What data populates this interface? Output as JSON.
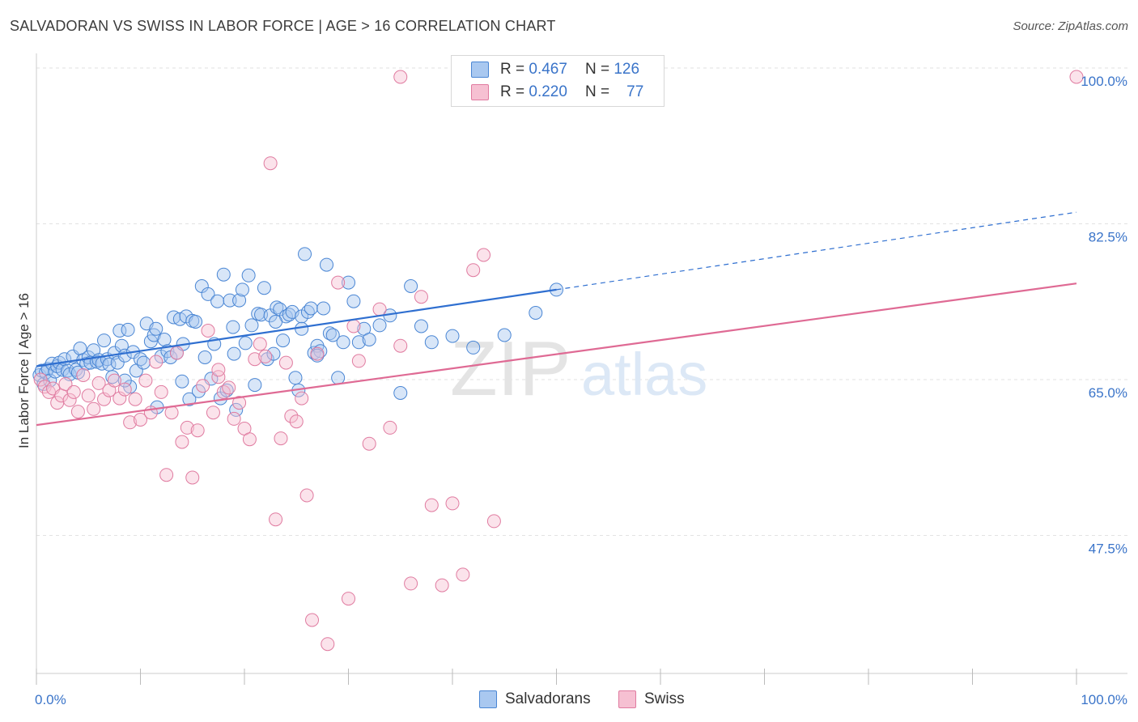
{
  "header": {
    "title": "SALVADORAN VS SWISS IN LABOR FORCE | AGE > 16 CORRELATION CHART",
    "source": "Source: ZipAtlas.com"
  },
  "legend": {
    "series1": {
      "r_label": "R =",
      "r_value": "0.467",
      "n_label": "N =",
      "n_value": "126"
    },
    "series2": {
      "r_label": "R =",
      "r_value": "0.220",
      "n_label": "N =",
      "n_value": "77"
    }
  },
  "watermark": {
    "zip": "ZIP",
    "atlas": "atlas"
  },
  "chart_data": {
    "type": "scatter",
    "title": "SALVADORAN VS SWISS IN LABOR FORCE | AGE > 16 CORRELATION CHART",
    "xlabel": "",
    "ylabel": "In Labor Force | Age > 16",
    "xlim": [
      0,
      100
    ],
    "ylim": [
      32,
      102
    ],
    "x_tick_labels": [
      "0.0%",
      "100.0%"
    ],
    "y_ticks": [
      47.5,
      65.0,
      82.5,
      100.0
    ],
    "y_tick_labels": [
      "47.5%",
      "65.0%",
      "82.5%",
      "100.0%"
    ],
    "grid": true,
    "legend_position": "top-center",
    "colors": {
      "Salvadorans": {
        "fill": "#a9c8f0",
        "stroke": "#4a86d4",
        "line": "#2f6fd0"
      },
      "Swiss": {
        "fill": "#f6c0d2",
        "stroke": "#e07ba0",
        "line": "#df6a94"
      }
    },
    "series": [
      {
        "name": "Salvadorans",
        "r": 0.467,
        "n": 126,
        "trend": {
          "x": [
            0,
            50
          ],
          "y": [
            66.5,
            75.1
          ],
          "dashed_extension": {
            "x": [
              50,
              100
            ],
            "y": [
              75.1,
              83.8
            ]
          }
        },
        "points": [
          [
            0.3,
            65.5
          ],
          [
            0.5,
            66.0
          ],
          [
            0.7,
            64.5
          ],
          [
            0.9,
            65.8
          ],
          [
            1.1,
            66.2
          ],
          [
            1.3,
            64.9
          ],
          [
            1.5,
            66.8
          ],
          [
            1.8,
            65.9
          ],
          [
            2.0,
            66.5
          ],
          [
            2.2,
            66.9
          ],
          [
            2.5,
            66.1
          ],
          [
            2.7,
            67.3
          ],
          [
            3.0,
            66.0
          ],
          [
            3.2,
            65.6
          ],
          [
            3.5,
            67.6
          ],
          [
            3.8,
            66.1
          ],
          [
            4.0,
            65.8
          ],
          [
            4.2,
            68.5
          ],
          [
            4.5,
            67.2
          ],
          [
            4.8,
            66.8
          ],
          [
            5.0,
            67.5
          ],
          [
            5.2,
            66.9
          ],
          [
            5.5,
            68.3
          ],
          [
            5.8,
            67.0
          ],
          [
            6.0,
            67.2
          ],
          [
            6.3,
            66.8
          ],
          [
            6.5,
            69.4
          ],
          [
            6.8,
            67.3
          ],
          [
            7.0,
            66.7
          ],
          [
            7.3,
            65.3
          ],
          [
            7.5,
            68.0
          ],
          [
            7.8,
            66.9
          ],
          [
            8.0,
            70.5
          ],
          [
            8.2,
            68.8
          ],
          [
            8.5,
            67.7
          ],
          [
            8.8,
            70.6
          ],
          [
            9.0,
            64.2
          ],
          [
            9.3,
            68.1
          ],
          [
            9.6,
            66.0
          ],
          [
            10.0,
            67.3
          ],
          [
            10.3,
            66.9
          ],
          [
            10.6,
            71.3
          ],
          [
            11.0,
            69.3
          ],
          [
            11.3,
            70.0
          ],
          [
            11.6,
            61.9
          ],
          [
            12.0,
            67.6
          ],
          [
            12.3,
            69.5
          ],
          [
            12.6,
            68.2
          ],
          [
            12.9,
            67.5
          ],
          [
            13.2,
            72.0
          ],
          [
            13.5,
            68.0
          ],
          [
            13.8,
            71.8
          ],
          [
            14.1,
            69.0
          ],
          [
            14.4,
            72.1
          ],
          [
            14.7,
            62.8
          ],
          [
            15.0,
            71.6
          ],
          [
            15.3,
            71.5
          ],
          [
            15.6,
            63.7
          ],
          [
            15.9,
            75.5
          ],
          [
            16.2,
            67.5
          ],
          [
            16.5,
            74.6
          ],
          [
            16.8,
            65.1
          ],
          [
            17.1,
            69.0
          ],
          [
            17.4,
            73.8
          ],
          [
            17.7,
            62.9
          ],
          [
            18.0,
            76.8
          ],
          [
            18.3,
            63.8
          ],
          [
            18.6,
            73.9
          ],
          [
            18.9,
            70.9
          ],
          [
            19.2,
            61.6
          ],
          [
            19.5,
            73.9
          ],
          [
            19.8,
            75.1
          ],
          [
            20.1,
            69.1
          ],
          [
            20.4,
            76.7
          ],
          [
            20.7,
            71.1
          ],
          [
            21.0,
            64.4
          ],
          [
            21.3,
            72.4
          ],
          [
            21.6,
            72.3
          ],
          [
            21.9,
            75.3
          ],
          [
            22.2,
            67.3
          ],
          [
            22.5,
            72.2
          ],
          [
            22.8,
            67.9
          ],
          [
            23.1,
            73.1
          ],
          [
            23.4,
            72.9
          ],
          [
            23.7,
            69.4
          ],
          [
            24.0,
            72.1
          ],
          [
            24.3,
            72.3
          ],
          [
            24.6,
            72.6
          ],
          [
            24.9,
            65.2
          ],
          [
            25.2,
            63.8
          ],
          [
            25.5,
            72.1
          ],
          [
            25.8,
            79.1
          ],
          [
            26.1,
            72.6
          ],
          [
            26.4,
            73.0
          ],
          [
            26.7,
            68.0
          ],
          [
            27.0,
            68.8
          ],
          [
            27.3,
            68.2
          ],
          [
            27.6,
            73.0
          ],
          [
            27.9,
            77.9
          ],
          [
            28.2,
            70.2
          ],
          [
            28.5,
            70.0
          ],
          [
            29.0,
            65.2
          ],
          [
            29.5,
            69.2
          ],
          [
            30.0,
            75.9
          ],
          [
            30.5,
            73.8
          ],
          [
            31.0,
            69.2
          ],
          [
            31.5,
            70.7
          ],
          [
            32.0,
            69.5
          ],
          [
            33.0,
            71.1
          ],
          [
            34.0,
            72.2
          ],
          [
            36.0,
            75.5
          ],
          [
            37.0,
            71.0
          ],
          [
            38.0,
            69.2
          ],
          [
            40.0,
            69.9
          ],
          [
            42.0,
            68.6
          ],
          [
            45.0,
            70.0
          ],
          [
            48.0,
            72.5
          ],
          [
            50.0,
            75.1
          ],
          [
            23.0,
            71.5
          ],
          [
            27.0,
            67.7
          ],
          [
            35.0,
            63.5
          ],
          [
            25.5,
            70.7
          ],
          [
            19.0,
            67.9
          ],
          [
            14.0,
            64.8
          ],
          [
            11.5,
            70.7
          ],
          [
            8.5,
            64.9
          ]
        ]
      },
      {
        "name": "Swiss",
        "r": 0.22,
        "n": 77,
        "trend": {
          "x": [
            0,
            100
          ],
          "y": [
            59.9,
            75.8
          ]
        },
        "points": [
          [
            0.4,
            65.0
          ],
          [
            0.8,
            64.2
          ],
          [
            1.2,
            63.6
          ],
          [
            1.6,
            64.0
          ],
          [
            2.0,
            62.4
          ],
          [
            2.4,
            63.2
          ],
          [
            2.8,
            64.5
          ],
          [
            3.2,
            62.7
          ],
          [
            3.6,
            63.6
          ],
          [
            4.0,
            61.4
          ],
          [
            4.5,
            65.5
          ],
          [
            5.0,
            63.2
          ],
          [
            5.5,
            61.7
          ],
          [
            6.0,
            64.6
          ],
          [
            6.5,
            62.8
          ],
          [
            7.0,
            63.8
          ],
          [
            7.5,
            64.9
          ],
          [
            8.0,
            62.9
          ],
          [
            8.5,
            63.9
          ],
          [
            9.0,
            60.2
          ],
          [
            9.5,
            62.8
          ],
          [
            10.0,
            60.5
          ],
          [
            10.5,
            64.9
          ],
          [
            11.0,
            61.3
          ],
          [
            11.5,
            67.0
          ],
          [
            12.0,
            63.6
          ],
          [
            12.5,
            54.3
          ],
          [
            13.0,
            61.3
          ],
          [
            13.5,
            68.0
          ],
          [
            14.0,
            58.0
          ],
          [
            14.5,
            59.6
          ],
          [
            15.0,
            54.0
          ],
          [
            15.5,
            59.3
          ],
          [
            16.0,
            64.3
          ],
          [
            16.5,
            70.5
          ],
          [
            17.0,
            61.3
          ],
          [
            17.5,
            65.3
          ],
          [
            18.0,
            63.6
          ],
          [
            18.5,
            64.1
          ],
          [
            19.0,
            60.6
          ],
          [
            19.5,
            62.4
          ],
          [
            20.0,
            59.5
          ],
          [
            20.5,
            58.3
          ],
          [
            21.0,
            67.3
          ],
          [
            21.5,
            69.0
          ],
          [
            22.0,
            67.6
          ],
          [
            22.5,
            89.3
          ],
          [
            23.0,
            49.3
          ],
          [
            23.5,
            58.4
          ],
          [
            24.0,
            66.9
          ],
          [
            24.5,
            60.9
          ],
          [
            25.0,
            60.3
          ],
          [
            25.5,
            62.9
          ],
          [
            26.0,
            52.0
          ],
          [
            26.5,
            38.0
          ],
          [
            27.0,
            67.9
          ],
          [
            28.0,
            35.3
          ],
          [
            29.0,
            75.9
          ],
          [
            30.0,
            40.4
          ],
          [
            31.0,
            67.1
          ],
          [
            32.0,
            57.8
          ],
          [
            33.0,
            72.9
          ],
          [
            34.0,
            59.6
          ],
          [
            35.0,
            68.8
          ],
          [
            36.0,
            42.1
          ],
          [
            37.0,
            74.3
          ],
          [
            38.0,
            50.9
          ],
          [
            39.0,
            41.9
          ],
          [
            40.0,
            51.1
          ],
          [
            41.0,
            43.1
          ],
          [
            42.0,
            77.3
          ],
          [
            43.0,
            79.0
          ],
          [
            44.0,
            49.1
          ],
          [
            35.0,
            99.0
          ],
          [
            100.0,
            99.0
          ],
          [
            30.5,
            71.0
          ],
          [
            17.5,
            66.1
          ]
        ]
      }
    ]
  }
}
